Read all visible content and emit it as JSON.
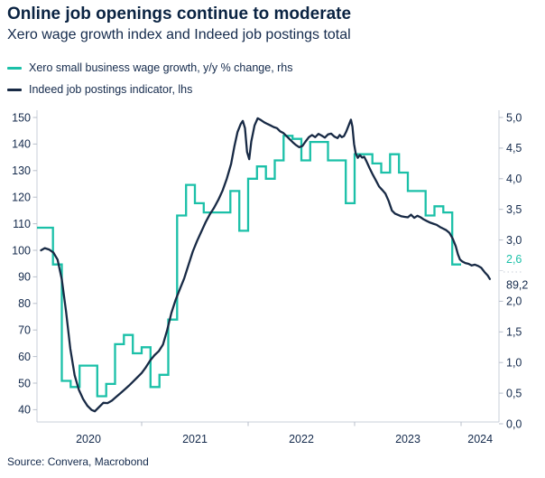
{
  "header": {
    "title": "Online job openings continue to moderate",
    "subtitle": "Xero wage growth index and Indeed job postings total"
  },
  "legend": [
    {
      "label": "Xero small business wage growth, y/y % change, rhs",
      "color": "#1BC0A8"
    },
    {
      "label": "Indeed job postings indicator, lhs",
      "color": "#182A45"
    }
  ],
  "source": {
    "text": "Source: Convera, Macrobond"
  },
  "colors": {
    "title": "#0A2342",
    "text": "#142A4C",
    "axis_line": "#C9CFD8",
    "tick": "#B8BFCB",
    "suppressed_tick": "#DCE0E6",
    "teal": "#1BC0A8",
    "navy": "#182A45"
  },
  "chart_data": {
    "type": "line",
    "title": "Online job openings continue to moderate",
    "subtitle": "Xero wage growth index and Indeed job postings total",
    "grid": "off",
    "legend_position": "top-left",
    "x_axis": {
      "range_years": [
        2020.0,
        2024.42
      ],
      "year_tick_values": [
        2021,
        2022,
        2023,
        2024
      ],
      "year_labels": [
        {
          "text": "2020",
          "t": 2020.5
        },
        {
          "text": "2021",
          "t": 2021.5
        },
        {
          "text": "2022",
          "t": 2022.5
        },
        {
          "text": "2023",
          "t": 2023.5
        },
        {
          "text": "2024",
          "t": 2024.18
        }
      ]
    },
    "left_axis": {
      "title": "Indeed job postings indicator",
      "range": [
        40,
        150
      ],
      "ticks": [
        {
          "value": 150,
          "label": "150"
        },
        {
          "value": 140,
          "label": "140"
        },
        {
          "value": 130,
          "label": "130"
        },
        {
          "value": 120,
          "label": "120"
        },
        {
          "value": 110,
          "label": "110"
        },
        {
          "value": 100,
          "label": "100"
        },
        {
          "value": 90,
          "label": "90"
        },
        {
          "value": 80,
          "label": "80"
        },
        {
          "value": 70,
          "label": "70"
        },
        {
          "value": 60,
          "label": "60"
        },
        {
          "value": 50,
          "label": "50"
        },
        {
          "value": 40,
          "label": "40"
        }
      ]
    },
    "right_axis": {
      "title": "Xero wage growth y/y % change",
      "range": [
        0,
        5
      ],
      "suppressed_tick_value": 2.5,
      "ticks": [
        {
          "value": 5,
          "label": "5,0"
        },
        {
          "value": 4.5,
          "label": "4,5"
        },
        {
          "value": 4,
          "label": "4,0"
        },
        {
          "value": 3.5,
          "label": "3,5"
        },
        {
          "value": 3,
          "label": "3,0"
        },
        {
          "value": 2,
          "label": "2,0"
        },
        {
          "value": 1.5,
          "label": "1,5"
        },
        {
          "value": 1,
          "label": "1,0"
        },
        {
          "value": 0.5,
          "label": "0,5"
        },
        {
          "value": 0,
          "label": "0,0"
        }
      ]
    },
    "series": [
      {
        "name": "Xero small business wage growth, y/y % change, rhs",
        "axis": "right",
        "render": "step",
        "color": "#1BC0A8",
        "start_year": 2020,
        "monthly_values": [
          3.2,
          3.2,
          2.6,
          0.7,
          0.6,
          0.95,
          0.95,
          0.45,
          0.65,
          1.3,
          1.45,
          1.15,
          1.25,
          0.6,
          0.8,
          1.7,
          3.4,
          3.9,
          3.6,
          3.45,
          3.45,
          3.45,
          3.8,
          3.15,
          4.0,
          4.2,
          4.0,
          4.3,
          4.7,
          4.65,
          4.3,
          4.6,
          4.6,
          4.3,
          4.3,
          3.6,
          4.4,
          4.4,
          4.25,
          4.1,
          4.4,
          4.1,
          3.8,
          3.8,
          3.4,
          3.55,
          3.45,
          2.6
        ],
        "last_value": 2.6,
        "end_label": "2,6"
      },
      {
        "name": "Indeed job postings indicator, lhs",
        "axis": "left",
        "render": "line",
        "color": "#182A45",
        "points": [
          [
            2020.055,
            100
          ],
          [
            2020.09,
            100.8
          ],
          [
            2020.13,
            100.3
          ],
          [
            2020.17,
            99.2
          ],
          [
            2020.21,
            96.5
          ],
          [
            2020.25,
            89
          ],
          [
            2020.29,
            77
          ],
          [
            2020.33,
            63
          ],
          [
            2020.37,
            53
          ],
          [
            2020.41,
            47.5
          ],
          [
            2020.45,
            44
          ],
          [
            2020.49,
            41.5
          ],
          [
            2020.53,
            39.9
          ],
          [
            2020.56,
            39.4
          ],
          [
            2020.6,
            41
          ],
          [
            2020.64,
            42.6
          ],
          [
            2020.68,
            42.5
          ],
          [
            2020.72,
            43.4
          ],
          [
            2020.76,
            44.8
          ],
          [
            2020.8,
            46.2
          ],
          [
            2020.84,
            47.6
          ],
          [
            2020.88,
            49
          ],
          [
            2020.92,
            50.6
          ],
          [
            2020.96,
            52.2
          ],
          [
            2021.0,
            53.8
          ],
          [
            2021.04,
            56
          ],
          [
            2021.08,
            58.5
          ],
          [
            2021.12,
            60.5
          ],
          [
            2021.16,
            62
          ],
          [
            2021.2,
            64.5
          ],
          [
            2021.24,
            70
          ],
          [
            2021.28,
            76.5
          ],
          [
            2021.32,
            81.5
          ],
          [
            2021.36,
            85.5
          ],
          [
            2021.4,
            89.5
          ],
          [
            2021.44,
            94.5
          ],
          [
            2021.48,
            99.5
          ],
          [
            2021.52,
            103.5
          ],
          [
            2021.56,
            107
          ],
          [
            2021.6,
            110.5
          ],
          [
            2021.64,
            113.5
          ],
          [
            2021.68,
            116
          ],
          [
            2021.72,
            119
          ],
          [
            2021.76,
            122.5
          ],
          [
            2021.8,
            127
          ],
          [
            2021.84,
            132.5
          ],
          [
            2021.87,
            139
          ],
          [
            2021.9,
            144.5
          ],
          [
            2021.93,
            147.5
          ],
          [
            2021.95,
            148.7
          ],
          [
            2021.97,
            146
          ],
          [
            2021.99,
            137
          ],
          [
            2022.01,
            134.3
          ],
          [
            2022.03,
            141
          ],
          [
            2022.06,
            147
          ],
          [
            2022.09,
            149.7
          ],
          [
            2022.12,
            149
          ],
          [
            2022.15,
            148.2
          ],
          [
            2022.18,
            147.6
          ],
          [
            2022.21,
            147
          ],
          [
            2022.24,
            146.4
          ],
          [
            2022.27,
            146
          ],
          [
            2022.3,
            144.8
          ],
          [
            2022.33,
            144.2
          ],
          [
            2022.36,
            143
          ],
          [
            2022.39,
            141.8
          ],
          [
            2022.42,
            140.6
          ],
          [
            2022.45,
            139.6
          ],
          [
            2022.48,
            138.8
          ],
          [
            2022.51,
            139.3
          ],
          [
            2022.54,
            141
          ],
          [
            2022.57,
            142.6
          ],
          [
            2022.6,
            143.4
          ],
          [
            2022.63,
            142.6
          ],
          [
            2022.66,
            143.8
          ],
          [
            2022.69,
            143.2
          ],
          [
            2022.72,
            142.4
          ],
          [
            2022.75,
            143.6
          ],
          [
            2022.78,
            143.9
          ],
          [
            2022.81,
            142.8
          ],
          [
            2022.84,
            142.2
          ],
          [
            2022.86,
            143.4
          ],
          [
            2022.88,
            142.6
          ],
          [
            2022.9,
            143
          ],
          [
            2022.92,
            144.6
          ],
          [
            2022.95,
            147.6
          ],
          [
            2022.965,
            149.2
          ],
          [
            2022.98,
            146.5
          ],
          [
            2022.995,
            140
          ],
          [
            2023.01,
            136.5
          ],
          [
            2023.03,
            134.8
          ],
          [
            2023.05,
            135.8
          ],
          [
            2023.07,
            134.9
          ],
          [
            2023.09,
            135.2
          ],
          [
            2023.11,
            133.6
          ],
          [
            2023.14,
            131
          ],
          [
            2023.17,
            128.5
          ],
          [
            2023.2,
            126.3
          ],
          [
            2023.23,
            124
          ],
          [
            2023.26,
            122.7
          ],
          [
            2023.29,
            121.3
          ],
          [
            2023.32,
            118.5
          ],
          [
            2023.35,
            115
          ],
          [
            2023.38,
            113.8
          ],
          [
            2023.41,
            113.3
          ],
          [
            2023.44,
            112.8
          ],
          [
            2023.47,
            112.6
          ],
          [
            2023.5,
            112.4
          ],
          [
            2023.53,
            113.4
          ],
          [
            2023.56,
            112.2
          ],
          [
            2023.59,
            113
          ],
          [
            2023.62,
            112.4
          ],
          [
            2023.65,
            111.6
          ],
          [
            2023.68,
            111
          ],
          [
            2023.71,
            110.4
          ],
          [
            2023.74,
            110
          ],
          [
            2023.77,
            109.6
          ],
          [
            2023.8,
            108.8
          ],
          [
            2023.83,
            108.2
          ],
          [
            2023.86,
            107.6
          ],
          [
            2023.89,
            106.6
          ],
          [
            2023.92,
            104.5
          ],
          [
            2023.95,
            101.5
          ],
          [
            2023.97,
            98.5
          ],
          [
            2023.99,
            96.5
          ],
          [
            2024.01,
            95.8
          ],
          [
            2024.04,
            95.2
          ],
          [
            2024.07,
            94.9
          ],
          [
            2024.1,
            94.3
          ],
          [
            2024.13,
            94.6
          ],
          [
            2024.16,
            94.1
          ],
          [
            2024.19,
            93.4
          ],
          [
            2024.22,
            91.8
          ],
          [
            2024.25,
            90.5
          ],
          [
            2024.27,
            89.2
          ]
        ],
        "last_value": 89.2,
        "end_label": "89,2"
      }
    ]
  }
}
